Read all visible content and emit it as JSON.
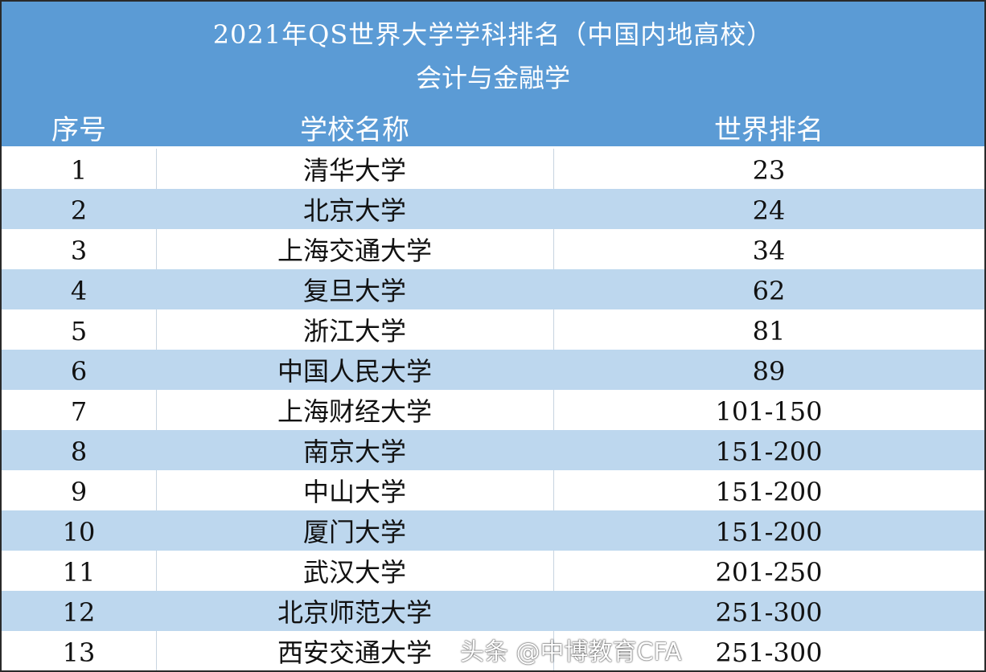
{
  "title": {
    "line1": "2021年QS世界大学学科排名（中国内地高校）",
    "line2": "会计与金融学"
  },
  "columns": [
    "序号",
    "学校名称",
    "世界排名"
  ],
  "rows": [
    [
      "1",
      "清华大学",
      "23"
    ],
    [
      "2",
      "北京大学",
      "24"
    ],
    [
      "3",
      "上海交通大学",
      "34"
    ],
    [
      "4",
      "复旦大学",
      "62"
    ],
    [
      "5",
      "浙江大学",
      "81"
    ],
    [
      "6",
      "中国人民大学",
      "89"
    ],
    [
      "7",
      "上海财经大学",
      "101-150"
    ],
    [
      "8",
      "南京大学",
      "151-200"
    ],
    [
      "9",
      "中山大学",
      "151-200"
    ],
    [
      "10",
      "厦门大学",
      "151-200"
    ],
    [
      "11",
      "武汉大学",
      "201-250"
    ],
    [
      "12",
      "北京师范大学",
      "251-300"
    ],
    [
      "13",
      "西安交通大学",
      "251-300"
    ]
  ],
  "watermark": "头条 @中博教育CFA",
  "colors": {
    "header": "#5b9bd5",
    "alt_row": "#bdd7ee"
  }
}
